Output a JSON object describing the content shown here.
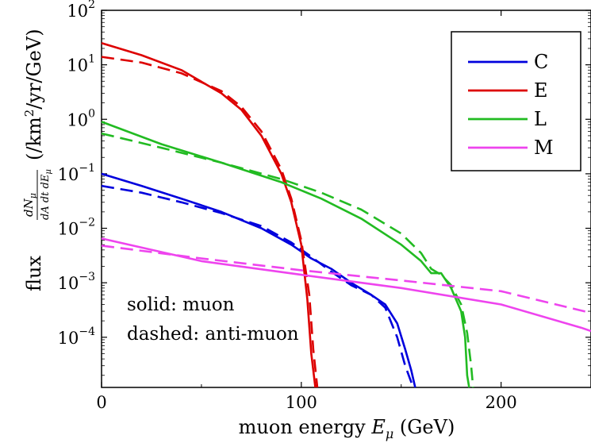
{
  "chart_data": {
    "type": "line",
    "title": "",
    "xlabel": "muon energy E_μ (GeV)",
    "ylabel": "flux dN_μ/dA dt dE_μ (/km²/yr/GeV)",
    "xlim": [
      0,
      245
    ],
    "ylim": [
      1.2e-05,
      100
    ],
    "yscale": "log",
    "grid": false,
    "legend_position": "top-right",
    "x_ticks": [
      "0",
      "100",
      "200"
    ],
    "x_tick_values": [
      0,
      100,
      200
    ],
    "y_tick_values": [
      100,
      10,
      1,
      0.1,
      0.01,
      0.001,
      0.0001
    ],
    "y_tick_bases": [
      "10",
      "10",
      "10",
      "10",
      "10",
      "10",
      "10"
    ],
    "y_tick_exps": [
      "2",
      "1",
      "0",
      "−1",
      "−2",
      "−3",
      "−4"
    ],
    "x_label_parts": {
      "prefix": "muon energy ",
      "sym": "E",
      "sub": "μ",
      "suffix": " (GeV)"
    },
    "y_label_parts": {
      "prefix": "flux",
      "numer": "dN",
      "numer_sub": "μ",
      "denom": "dA dt dE",
      "denom_sub": "μ",
      "suffix": "(/km",
      "sup": "2",
      "suffix2": "/yr/GeV)"
    },
    "annotations": [
      "solid: muon",
      "dashed: anti-muon"
    ],
    "series": [
      {
        "name": "C",
        "color": "#0000dd",
        "style": "solid",
        "x": [
          0,
          20,
          40,
          60,
          80,
          95,
          105,
          115,
          125,
          135,
          142,
          148,
          152,
          155,
          157
        ],
        "y": [
          0.1,
          0.06,
          0.035,
          0.02,
          0.01,
          0.005,
          0.0028,
          0.0018,
          0.001,
          0.0006,
          0.0004,
          0.00018,
          6e-05,
          2.5e-05,
          1.2e-05
        ]
      },
      {
        "name": "C",
        "color": "#0000dd",
        "style": "dashed",
        "x": [
          0,
          20,
          40,
          60,
          80,
          95,
          105,
          115,
          125,
          135,
          142,
          148,
          152,
          156
        ],
        "y": [
          0.06,
          0.045,
          0.03,
          0.019,
          0.011,
          0.0055,
          0.003,
          0.0016,
          0.0009,
          0.0006,
          0.00035,
          0.0001,
          3e-05,
          1.2e-05
        ]
      },
      {
        "name": "E",
        "color": "#dd0000",
        "style": "solid",
        "x": [
          0,
          20,
          40,
          60,
          70,
          80,
          90,
          95,
          100,
          103,
          105,
          107
        ],
        "y": [
          25,
          15,
          8,
          3,
          1.5,
          0.5,
          0.1,
          0.03,
          0.005,
          0.0005,
          5e-05,
          1.2e-05
        ]
      },
      {
        "name": "E",
        "color": "#dd0000",
        "style": "dashed",
        "x": [
          0,
          20,
          40,
          60,
          70,
          80,
          90,
          95,
          100,
          104,
          106,
          108
        ],
        "y": [
          14,
          11,
          7,
          3.3,
          1.7,
          0.6,
          0.12,
          0.035,
          0.006,
          0.0006,
          6e-05,
          1.2e-05
        ]
      },
      {
        "name": "L",
        "color": "#22bb22",
        "style": "solid",
        "x": [
          0,
          30,
          60,
          90,
          110,
          130,
          150,
          160,
          165,
          170,
          175,
          180,
          182,
          183,
          184
        ],
        "y": [
          0.9,
          0.35,
          0.16,
          0.07,
          0.035,
          0.015,
          0.005,
          0.0025,
          0.0015,
          0.0015,
          0.0008,
          0.0003,
          0.0001,
          2e-05,
          1.2e-05
        ]
      },
      {
        "name": "L",
        "color": "#22bb22",
        "style": "dashed",
        "x": [
          0,
          30,
          60,
          90,
          110,
          130,
          150,
          160,
          165,
          170,
          175,
          180,
          183,
          185,
          186
        ],
        "y": [
          0.55,
          0.3,
          0.16,
          0.08,
          0.045,
          0.022,
          0.008,
          0.0035,
          0.0018,
          0.0014,
          0.0009,
          0.0004,
          0.00012,
          3e-05,
          1.2e-05
        ]
      },
      {
        "name": "M",
        "color": "#ee44ee",
        "style": "solid",
        "x": [
          0,
          50,
          100,
          150,
          200,
          240,
          245
        ],
        "y": [
          0.0065,
          0.0025,
          0.0014,
          0.0008,
          0.0004,
          0.00015,
          0.00013
        ]
      },
      {
        "name": "M",
        "color": "#ee44ee",
        "style": "dashed",
        "x": [
          0,
          50,
          100,
          150,
          200,
          245
        ],
        "y": [
          0.0048,
          0.0028,
          0.0017,
          0.0011,
          0.0007,
          0.00028
        ]
      }
    ],
    "legend": [
      {
        "name": "C",
        "color": "#0000dd"
      },
      {
        "name": "E",
        "color": "#dd0000"
      },
      {
        "name": "L",
        "color": "#22bb22"
      },
      {
        "name": "M",
        "color": "#ee44ee"
      }
    ]
  }
}
